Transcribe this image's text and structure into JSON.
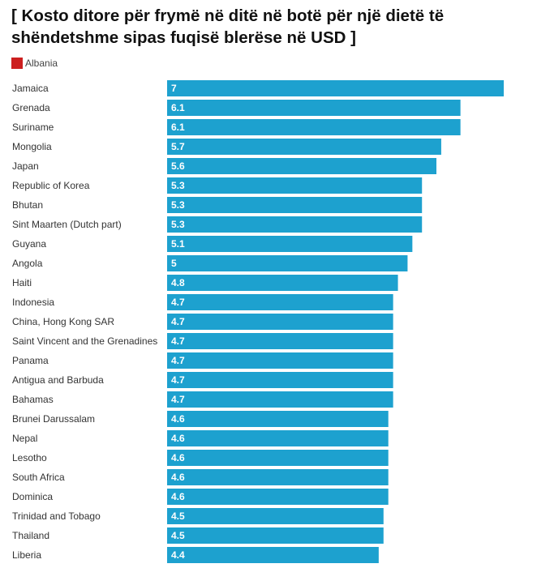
{
  "page": {
    "title": "[ Kosto ditore për frymë në ditë në botë për një dietë të shëndetshme sipas fuqisë blerëse në USD ]"
  },
  "legend": {
    "label": "Albania",
    "color": "#cc1f1f"
  },
  "chart_data": {
    "type": "bar",
    "orientation": "horizontal",
    "title": "[ Kosto ditore për frymë në ditë në botë për një dietë të shëndetshme sipas fuqisë blerëse në USD ]",
    "xlabel": "",
    "ylabel": "",
    "xlim": [
      0,
      7
    ],
    "bar_color": "#1da1cf",
    "legend": [
      "Albania"
    ],
    "categories": [
      "Jamaica",
      "Grenada",
      "Suriname",
      "Mongolia",
      "Japan",
      "Republic of Korea",
      "Bhutan",
      "Sint Maarten (Dutch part)",
      "Guyana",
      "Angola",
      "Haiti",
      "Indonesia",
      "China, Hong Kong SAR",
      "Saint Vincent and the Grenadines",
      "Panama",
      "Antigua and Barbuda",
      "Bahamas",
      "Brunei Darussalam",
      "Nepal",
      "Lesotho",
      "South Africa",
      "Dominica",
      "Trinidad and Tobago",
      "Thailand",
      "Liberia"
    ],
    "values": [
      7,
      6.1,
      6.1,
      5.7,
      5.6,
      5.3,
      5.3,
      5.3,
      5.1,
      5,
      4.8,
      4.7,
      4.7,
      4.7,
      4.7,
      4.7,
      4.7,
      4.6,
      4.6,
      4.6,
      4.6,
      4.6,
      4.5,
      4.5,
      4.4
    ],
    "value_labels": [
      "7",
      "6.1",
      "6.1",
      "5.7",
      "5.6",
      "5.3",
      "5.3",
      "5.3",
      "5.1",
      "5",
      "4.8",
      "4.7",
      "4.7",
      "4.7",
      "4.7",
      "4.7",
      "4.7",
      "4.6",
      "4.6",
      "4.6",
      "4.6",
      "4.6",
      "4.5",
      "4.5",
      "4.4"
    ]
  }
}
